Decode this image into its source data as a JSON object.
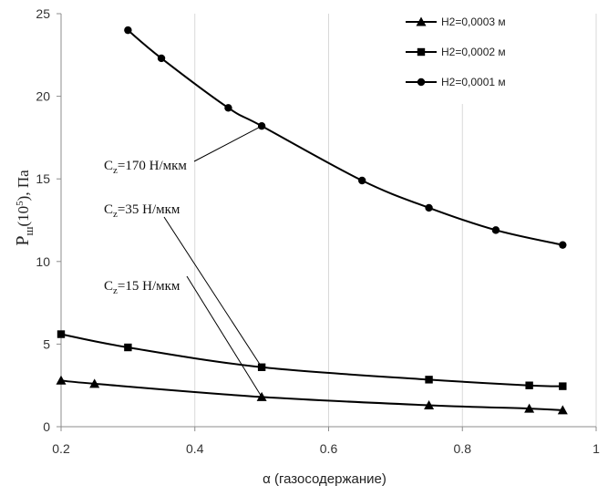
{
  "chart_data": {
    "type": "line",
    "title": "",
    "xlabel_symbol": "α",
    "xlabel_text": "(газосодержание)",
    "ylabel": {
      "main": "P",
      "sub": "ш",
      "paren_open": "(10",
      "sup": "5",
      "rest": "), Па"
    },
    "xlim": [
      0.2,
      1.0
    ],
    "ylim": [
      0,
      25
    ],
    "x_ticks": [
      0.2,
      0.4,
      0.6,
      0.8,
      1.0
    ],
    "x_tick_labels": [
      "0.2",
      "0.4",
      "0.6",
      "0.8",
      "1"
    ],
    "y_ticks": [
      0,
      5,
      10,
      15,
      20,
      25
    ],
    "y_tick_labels": [
      "0",
      "5",
      "10",
      "15",
      "20",
      "25"
    ],
    "grid": "vertical",
    "legend_position": "top-right",
    "series": [
      {
        "name": "H2=0,0003 м",
        "marker": "triangle",
        "x": [
          0.2,
          0.25,
          0.5,
          0.75,
          0.9,
          0.95
        ],
        "y": [
          2.8,
          2.6,
          1.8,
          1.3,
          1.1,
          1.0
        ]
      },
      {
        "name": "H2=0,0002 м",
        "marker": "square",
        "x": [
          0.2,
          0.3,
          0.5,
          0.75,
          0.9,
          0.95
        ],
        "y": [
          5.6,
          4.8,
          3.6,
          2.85,
          2.5,
          2.45
        ]
      },
      {
        "name": "H2=0,0001 м",
        "marker": "circle",
        "x": [
          0.3,
          0.35,
          0.45,
          0.5,
          0.65,
          0.75,
          0.85,
          0.95
        ],
        "y": [
          24.0,
          22.3,
          19.3,
          18.2,
          14.9,
          13.25,
          11.9,
          11.0
        ]
      }
    ],
    "annotations": [
      {
        "main": "C",
        "sub": "z",
        "rest": "=170 Н/мкм",
        "target": [
          0.5,
          18.2
        ]
      },
      {
        "main": "C",
        "sub": "z",
        "rest": "=35 Н/мкм",
        "target": [
          0.5,
          3.6
        ]
      },
      {
        "main": "C",
        "sub": "z",
        "rest": "=15 Н/мкм",
        "target": [
          0.5,
          1.8
        ]
      }
    ]
  }
}
